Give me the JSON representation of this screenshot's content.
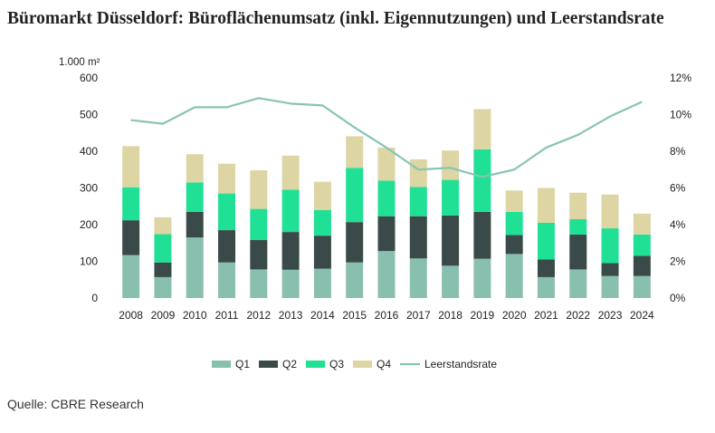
{
  "title": "Büromarkt Düsseldorf: Büroflächenumsatz (inkl. Eigennutzungen) und Leerstandsrate",
  "source": "Quelle: CBRE Research",
  "chart_data": {
    "type": "bar",
    "stacked": true,
    "categories": [
      "2008",
      "2009",
      "2010",
      "2011",
      "2012",
      "2013",
      "2014",
      "2015",
      "2016",
      "2017",
      "2018",
      "2019",
      "2020",
      "2021",
      "2022",
      "2023",
      "2024"
    ],
    "ylabel": "1.000 m²",
    "ylim": [
      0,
      600
    ],
    "y_ticks": [
      "0",
      "100",
      "200",
      "300",
      "400",
      "500",
      "600"
    ],
    "y2lim": [
      0,
      12
    ],
    "y2_ticks": [
      "0%",
      "2%",
      "4%",
      "6%",
      "8%",
      "10%",
      "12%"
    ],
    "grid": false,
    "legend_position": "bottom",
    "series": [
      {
        "name": "Q1",
        "color": "#88bfae",
        "values": [
          117,
          57,
          165,
          97,
          78,
          77,
          80,
          97,
          128,
          108,
          88,
          107,
          120,
          57,
          78,
          60,
          60
        ]
      },
      {
        "name": "Q2",
        "color": "#3a4a48",
        "values": [
          95,
          40,
          70,
          88,
          80,
          103,
          90,
          110,
          95,
          115,
          137,
          128,
          52,
          48,
          95,
          35,
          55
        ]
      },
      {
        "name": "Q3",
        "color": "#1fe095",
        "values": [
          90,
          77,
          80,
          100,
          85,
          115,
          70,
          148,
          97,
          80,
          97,
          170,
          63,
          100,
          42,
          95,
          58
        ]
      },
      {
        "name": "Q4",
        "color": "#ddd5a3",
        "values": [
          112,
          46,
          77,
          81,
          105,
          93,
          77,
          86,
          90,
          75,
          80,
          110,
          58,
          95,
          72,
          92,
          57
        ]
      }
    ],
    "line": {
      "name": "Leerstandsrate",
      "color": "#88c4b5",
      "axis": "right",
      "values": [
        9.7,
        9.5,
        10.4,
        10.4,
        10.9,
        10.6,
        10.5,
        9.3,
        8.2,
        7.0,
        7.1,
        6.6,
        7.0,
        8.2,
        8.9,
        9.9,
        10.7
      ]
    }
  }
}
